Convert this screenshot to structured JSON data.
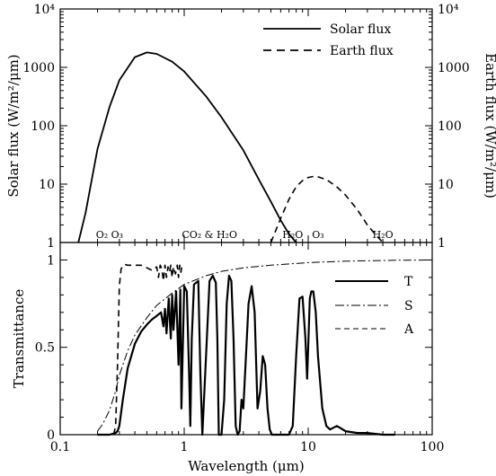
{
  "chart_data": [
    {
      "type": "line",
      "panel": "top",
      "xscale": "log",
      "xlim": [
        0.1,
        100
      ],
      "yscale": "log",
      "ylim": [
        1,
        10000
      ],
      "ylabel": "Solar flux (W/m²/μm)",
      "ylabel_right": "Earth flux (W/m²/μm)",
      "yticks": [
        "1",
        "10",
        "100",
        "1000",
        "10⁴"
      ],
      "legend": "top-right",
      "series": [
        {
          "name": "Solar flux",
          "style": "solid",
          "x": [
            0.14,
            0.16,
            0.2,
            0.25,
            0.3,
            0.4,
            0.5,
            0.6,
            0.8,
            1.0,
            1.5,
            2.0,
            3.0,
            4.0,
            5.0,
            6.0,
            7.0,
            8.0
          ],
          "y": [
            1,
            3.2,
            40,
            210,
            600,
            1500,
            1800,
            1700,
            1250,
            850,
            320,
            140,
            38,
            12,
            5,
            2.4,
            1.4,
            1
          ]
        },
        {
          "name": "Earth flux",
          "style": "dashed",
          "x": [
            5.0,
            6.0,
            7.0,
            8.0,
            9.0,
            10.0,
            11.0,
            12.0,
            14.0,
            17.0,
            20.0,
            25.0,
            30.0,
            35.0,
            40.0
          ],
          "y": [
            1,
            2.6,
            5.5,
            9,
            11.5,
            13,
            13.5,
            13.3,
            12,
            9,
            6.5,
            3.6,
            2.0,
            1.35,
            1
          ]
        }
      ]
    },
    {
      "type": "line",
      "panel": "bottom",
      "xscale": "log",
      "xlim": [
        0.1,
        100
      ],
      "ylim": [
        0,
        1.1
      ],
      "xlabel": "Wavelength (μm)",
      "ylabel": "Transmittance",
      "xticks": [
        "0.1",
        "1",
        "10",
        "100"
      ],
      "yticks": [
        "0",
        "0.5",
        "1"
      ],
      "legend": "center-right",
      "absorber_labels": [
        {
          "text": "O₂ O₃",
          "x": 0.25
        },
        {
          "text": "CO₂ & H₂O",
          "x": 1.6
        },
        {
          "text": "H₂O",
          "x": 7.5
        },
        {
          "text": "O₃",
          "x": 12.0
        },
        {
          "text": "H₂O",
          "x": 40.0
        }
      ],
      "series": [
        {
          "name": "T",
          "style": "solid",
          "x": [
            0.2,
            0.25,
            0.28,
            0.29,
            0.3,
            0.32,
            0.35,
            0.4,
            0.45,
            0.5,
            0.55,
            0.6,
            0.65,
            0.68,
            0.7,
            0.72,
            0.75,
            0.78,
            0.8,
            0.82,
            0.86,
            0.9,
            0.93,
            0.95,
            1.0,
            1.05,
            1.1,
            1.12,
            1.15,
            1.2,
            1.3,
            1.35,
            1.4,
            1.5,
            1.6,
            1.7,
            1.8,
            1.85,
            1.9,
            2.0,
            2.1,
            2.2,
            2.3,
            2.4,
            2.5,
            2.6,
            2.7,
            2.8,
            2.9,
            3.0,
            3.2,
            3.3,
            3.5,
            3.7,
            3.9,
            4.1,
            4.3,
            4.5,
            4.7,
            4.9,
            5.1,
            5.3,
            5.5,
            6.0,
            6.5,
            7.0,
            7.5,
            8.0,
            8.5,
            9.0,
            9.5,
            9.8,
            10.0,
            10.3,
            10.6,
            11.0,
            11.5,
            12.0,
            13.0,
            14.0,
            15.0,
            16.0,
            17.0,
            18.0,
            20.0,
            25.0,
            30.0,
            40.0,
            50.0
          ],
          "y": [
            0,
            0,
            0.01,
            0.02,
            0.05,
            0.2,
            0.38,
            0.52,
            0.59,
            0.63,
            0.66,
            0.68,
            0.7,
            0.62,
            0.72,
            0.58,
            0.78,
            0.55,
            0.8,
            0.6,
            0.82,
            0.4,
            0.83,
            0.15,
            0.85,
            0.82,
            0.3,
            0.05,
            0.55,
            0.86,
            0.88,
            0.35,
            0.0,
            0.45,
            0.88,
            0.91,
            0.87,
            0.55,
            0.0,
            0.0,
            0.2,
            0.75,
            0.91,
            0.88,
            0.55,
            0.05,
            0.0,
            0.02,
            0.2,
            0.15,
            0.55,
            0.75,
            0.85,
            0.7,
            0.15,
            0.25,
            0.45,
            0.4,
            0.15,
            0.03,
            0.0,
            0.0,
            0.0,
            0.0,
            0.0,
            0.0,
            0.05,
            0.45,
            0.78,
            0.79,
            0.55,
            0.32,
            0.5,
            0.78,
            0.82,
            0.82,
            0.7,
            0.45,
            0.15,
            0.05,
            0.03,
            0.04,
            0.05,
            0.04,
            0.02,
            0.01,
            0.01,
            0.0,
            0.0
          ]
        },
        {
          "name": "S",
          "style": "dashdot",
          "x": [
            0.2,
            0.22,
            0.25,
            0.28,
            0.3,
            0.35,
            0.4,
            0.5,
            0.6,
            0.8,
            1.0,
            1.5,
            2.0,
            3.0,
            5.0,
            10.0,
            20.0,
            50.0,
            100.0
          ],
          "y": [
            0.02,
            0.06,
            0.14,
            0.25,
            0.34,
            0.48,
            0.57,
            0.67,
            0.74,
            0.81,
            0.86,
            0.91,
            0.935,
            0.955,
            0.97,
            0.985,
            0.993,
            0.998,
            1.0
          ]
        },
        {
          "name": "A",
          "style": "dashed",
          "x": [
            0.27,
            0.28,
            0.29,
            0.3,
            0.31,
            0.33,
            0.35,
            0.4,
            0.45,
            0.5,
            0.55,
            0.6,
            0.62,
            0.64,
            0.66,
            0.68,
            0.7,
            0.72,
            0.74,
            0.76,
            0.78,
            0.8,
            0.82,
            0.85,
            0.88,
            0.9,
            0.92,
            0.94,
            0.96,
            1.0
          ],
          "y": [
            0.0,
            0.05,
            0.4,
            0.85,
            0.95,
            0.975,
            0.97,
            0.97,
            0.97,
            0.955,
            0.94,
            0.96,
            0.9,
            0.97,
            0.95,
            0.88,
            0.97,
            0.9,
            0.96,
            0.93,
            0.97,
            0.9,
            0.96,
            0.92,
            0.97,
            0.9,
            0.97,
            0.93,
            0.97,
            0.97
          ]
        }
      ]
    }
  ]
}
